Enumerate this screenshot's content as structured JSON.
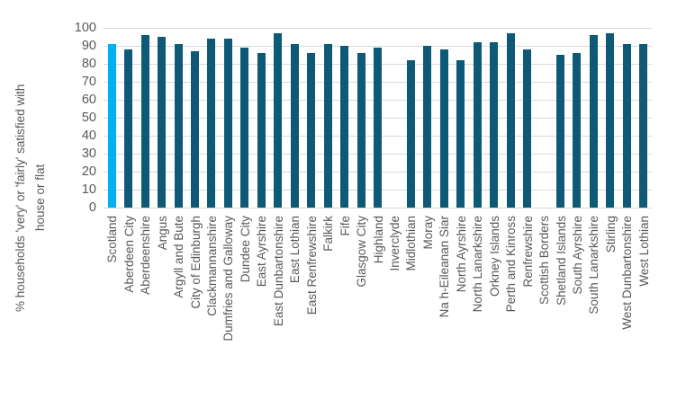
{
  "chart_data": {
    "type": "bar",
    "title": "",
    "ylabel_line1": "% households 'very' or 'fairly' satisfied with",
    "ylabel_line2": "house or flat",
    "categories": [
      "Scotland",
      "Aberdeen City",
      "Aberdeenshire",
      "Angus",
      "Argyll and Bute",
      "City of Edinburgh",
      "Clackmannanshire",
      "Dumfries and Galloway",
      "Dundee City",
      "East Ayrshire",
      "East Dunbartonshire",
      "East Lothian",
      "East Renfrewshire",
      "Falkirk",
      "Fife",
      "Glasgow City",
      "Highland",
      "Inverclyde",
      "Midlothian",
      "Moray",
      "Na h-Eileanan Siar",
      "North Ayrshire",
      "North Lanarkshire",
      "Orkney Islands",
      "Perth and Kinross",
      "Renfrewshire",
      "Scottish Borders",
      "Shetland Islands",
      "South Ayrshire",
      "South Lanarkshire",
      "Stirling",
      "West Dunbartonshire",
      "West Lothian"
    ],
    "values": [
      91,
      88,
      96,
      95,
      91,
      87,
      94,
      94,
      89,
      86,
      97,
      91,
      86,
      91,
      90,
      86,
      89,
      null,
      82,
      90,
      88,
      82,
      92,
      92,
      97,
      88,
      null,
      85,
      86,
      96,
      97,
      91,
      91
    ],
    "highlight_category": "Scotland",
    "highlight_index": 0,
    "ylim": [
      0,
      100
    ],
    "yticks": [
      0,
      10,
      20,
      30,
      40,
      50,
      60,
      70,
      80,
      90,
      100
    ],
    "grid": true,
    "legend": "none",
    "colors": {
      "bar": "#0e5a76",
      "highlight": "#00b0f0",
      "gridline": "#d9d9d9",
      "axis_label": "#595959"
    }
  }
}
